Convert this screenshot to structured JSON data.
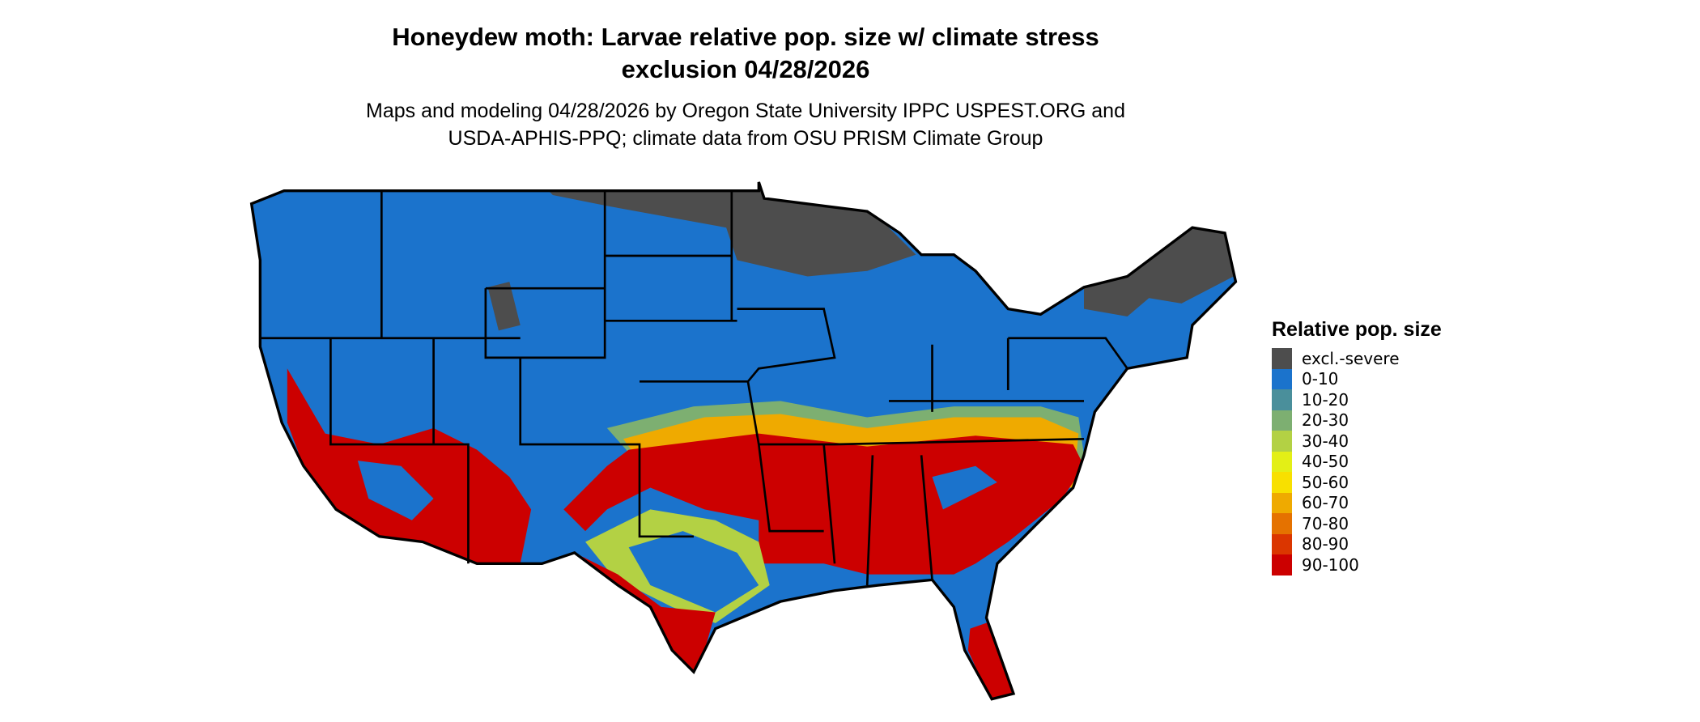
{
  "title": {
    "line1": "Honeydew moth: Larvae relative pop. size w/ climate stress",
    "line2": "exclusion 04/28/2026"
  },
  "subtitle": {
    "line1": "Maps and modeling 04/28/2026 by Oregon State University IPPC USPEST.ORG and",
    "line2": "USDA-APHIS-PPQ; climate data from OSU PRISM Climate Group"
  },
  "legend": {
    "title": "Relative pop. size",
    "items": [
      {
        "label": "excl.-severe",
        "color": "#4d4d4d"
      },
      {
        "label": "0-10",
        "color": "#1b73cc"
      },
      {
        "label": "10-20",
        "color": "#4a8f9b"
      },
      {
        "label": "20-30",
        "color": "#7daf71"
      },
      {
        "label": "30-40",
        "color": "#b3d144"
      },
      {
        "label": "40-50",
        "color": "#e3ef16"
      },
      {
        "label": "50-60",
        "color": "#f8e000"
      },
      {
        "label": "60-70",
        "color": "#efaa00"
      },
      {
        "label": "70-80",
        "color": "#e57200"
      },
      {
        "label": "80-90",
        "color": "#db3600"
      },
      {
        "label": "90-100",
        "color": "#cc0000"
      }
    ]
  }
}
